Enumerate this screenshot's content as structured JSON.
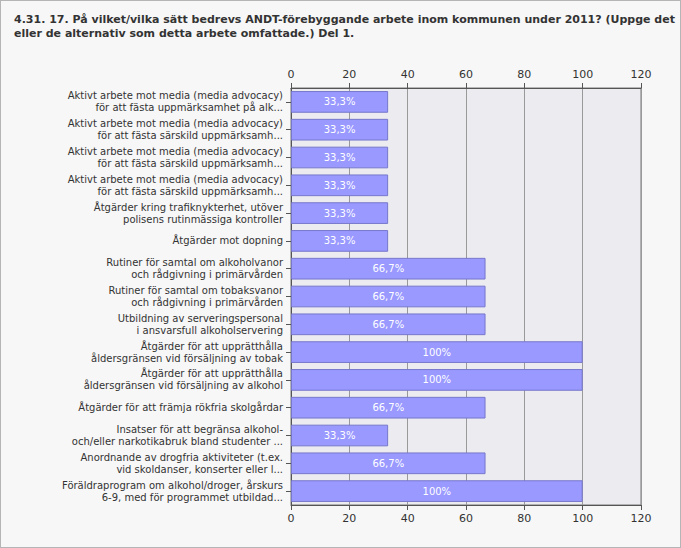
{
  "chart_data": {
    "type": "bar",
    "orientation": "horizontal",
    "title": "4.31. 17. På vilket/vilka sätt bedrevs ANDT-förebyggande arbete inom kommunen under 2011? (Uppge det\neller de alternativ som detta arbete omfattade.) Del 1.",
    "categories": [
      "Aktivt arbete mot media (media advocacy)\nför att fästa uppmärksamhet på alk...",
      "Aktivt arbete mot media (media advocacy)\nför att fästa särskild uppmärksamh...",
      "Aktivt arbete mot media (media advocacy)\nför att fästa särskild uppmärksamh...",
      "Aktivt arbete mot media (media advocacy)\nför att fästa särskild uppmärksamh...",
      "Åtgärder kring trafiknykterhet, utöver\npolisens rutinmässiga kontroller",
      "Åtgärder mot dopning",
      "Rutiner för samtal om alkoholvanor\noch rådgivning i primärvården",
      "Rutiner för samtal om tobaksvanor\noch rådgivning i primärvården",
      "Utbildning av serveringspersonal\ni ansvarsfull alkoholservering",
      "Åtgärder för att upprätthålla\nåldersgränsen vid försäljning av tobak",
      "Åtgärder för att upprätthålla\nåldersgränsen vid försäljning av alkohol",
      "Åtgärder för att främja rökfria skolgårdar",
      "Insatser för att begränsa alkohol-\noch/eller narkotikabruk bland studenter ...",
      "Anordnande av drogfria aktiviteter (t.ex.\nvid skoldanser, konserter eller l...",
      "Föräldraprogram om alkohol/droger, årskurs\n6-9, med för programmet utbildad..."
    ],
    "values": [
      33.3,
      33.3,
      33.3,
      33.3,
      33.3,
      33.3,
      66.7,
      66.7,
      66.7,
      100,
      100,
      66.7,
      33.3,
      66.7,
      100
    ],
    "value_labels": [
      "33,3%",
      "33,3%",
      "33,3%",
      "33,3%",
      "33,3%",
      "33,3%",
      "66,7%",
      "66,7%",
      "66,7%",
      "100%",
      "100%",
      "66,7%",
      "33,3%",
      "66,7%",
      "100%"
    ],
    "data_labels": true,
    "color": "#9999ff",
    "xlim": [
      0,
      120
    ],
    "xticks": [
      0,
      20,
      40,
      60,
      80,
      100,
      120
    ],
    "grid": true
  }
}
